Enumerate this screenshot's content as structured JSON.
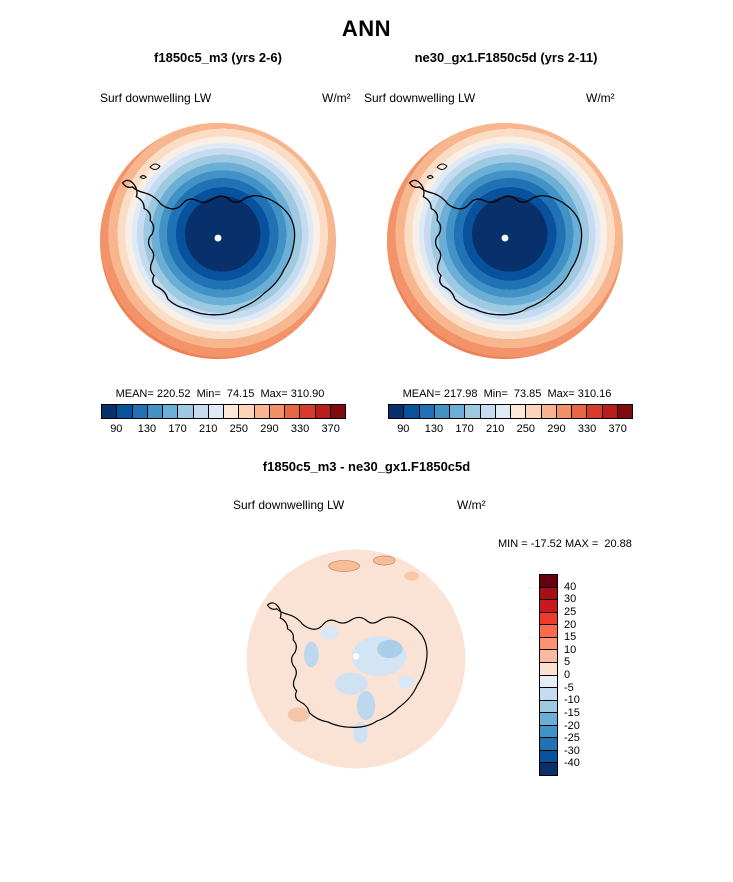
{
  "title": "ANN",
  "panels": [
    {
      "subtitle": "f1850c5_m3 (yrs 2-6)",
      "field": "Surf downwelling LW",
      "units": "W/m²",
      "stats": "MEAN= 220.52  Min=  74.15  Max= 310.90"
    },
    {
      "subtitle": "ne30_gx1.F1850c5d (yrs 2-11)",
      "field": "Surf downwelling LW",
      "units": "W/m²",
      "stats": "MEAN= 217.98  Min=  73.85  Max= 310.16"
    }
  ],
  "colorbar": {
    "colors": [
      "#08306b",
      "#08519c",
      "#2171b5",
      "#4292c6",
      "#6baed6",
      "#9ecae1",
      "#c6dbef",
      "#deebf7",
      "#fcead9",
      "#fbd5b9",
      "#f8b58e",
      "#f29066",
      "#e76744",
      "#d73b2a",
      "#b81f18",
      "#7f0a10"
    ],
    "ticks": [
      "90",
      "130",
      "170",
      "210",
      "250",
      "290",
      "330",
      "370"
    ]
  },
  "diff": {
    "title": "f1850c5_m3 - ne30_gx1.F1850c5d",
    "field": "Surf downwelling LW",
    "units": "W/m²",
    "minmax": "MIN = -17.52 MAX =  20.88",
    "colorbar": {
      "colors": [
        "#67000d",
        "#a50f15",
        "#cb181d",
        "#ef3b2c",
        "#fb6a4a",
        "#fc9272",
        "#fcbba1",
        "#fde0d0",
        "#e4eef9",
        "#c6dbef",
        "#9ecae1",
        "#6baed6",
        "#4292c6",
        "#2171b5",
        "#08519c",
        "#08306b"
      ],
      "ticks": [
        "40",
        "30",
        "25",
        "20",
        "15",
        "10",
        "5",
        "0",
        "-5",
        "-10",
        "-15",
        "-20",
        "-25",
        "-30",
        "-40"
      ]
    }
  },
  "chart_data": [
    {
      "type": "heatmap",
      "projection": "south polar stereographic (Antarctica)",
      "title": "f1850c5_m3 (yrs 2-6)",
      "variable": "Surf downwelling LW",
      "units": "W/m²",
      "mean": 220.52,
      "min": 74.15,
      "max": 310.9,
      "contour_levels": [
        90,
        110,
        130,
        150,
        170,
        190,
        210,
        230,
        250,
        270,
        290,
        310,
        330,
        350,
        370
      ],
      "palette": "blue (low, over Antarctic interior) to red (high, over ocean)",
      "legend_position": "below"
    },
    {
      "type": "heatmap",
      "projection": "south polar stereographic (Antarctica)",
      "title": "ne30_gx1.F1850c5d (yrs 2-11)",
      "variable": "Surf downwelling LW",
      "units": "W/m²",
      "mean": 217.98,
      "min": 73.85,
      "max": 310.16,
      "contour_levels": [
        90,
        110,
        130,
        150,
        170,
        190,
        210,
        230,
        250,
        270,
        290,
        310,
        330,
        350,
        370
      ],
      "palette": "blue (low, over Antarctic interior) to red (high, over ocean)",
      "legend_position": "below"
    },
    {
      "type": "heatmap",
      "projection": "south polar stereographic (Antarctica)",
      "title": "f1850c5_m3 - ne30_gx1.F1850c5d",
      "variable": "Surf downwelling LW difference",
      "units": "W/m²",
      "min": -17.52,
      "max": 20.88,
      "contour_levels": [
        -40,
        -30,
        -25,
        -20,
        -15,
        -10,
        -5,
        0,
        5,
        10,
        15,
        20,
        25,
        30,
        40
      ],
      "palette": "red positive / blue negative, mostly near-zero pale field",
      "legend_position": "right"
    }
  ]
}
